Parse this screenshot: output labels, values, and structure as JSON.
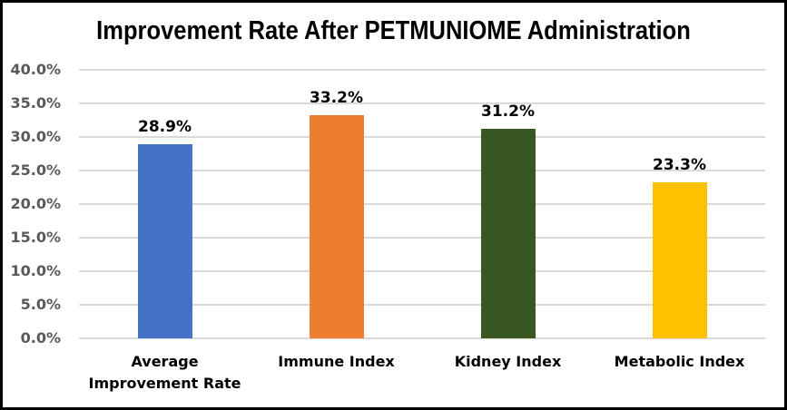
{
  "colors": {
    "background": "#ffffff",
    "border": "#000000",
    "gridline": "#d9d9d9",
    "axis_label_text": "#595959",
    "data_label_text": "#000000"
  },
  "chart_data": {
    "type": "bar",
    "title": "Improvement Rate After PETMUNIOME Administration",
    "categories": [
      "Average Improvement Rate",
      "Immune Index",
      "Kidney Index",
      "Metabolic Index"
    ],
    "category_lines": [
      [
        "Average",
        "Improvement Rate"
      ],
      [
        "Immune Index"
      ],
      [
        "Kidney Index"
      ],
      [
        "Metabolic Index"
      ]
    ],
    "values": [
      28.9,
      33.2,
      31.2,
      23.3
    ],
    "value_labels": [
      "28.9%",
      "33.2%",
      "31.2%",
      "23.3%"
    ],
    "bar_colors": [
      "#4472C4",
      "#ED7D31",
      "#385723",
      "#FFC000"
    ],
    "xlabel": "",
    "ylabel": "",
    "ylim": [
      0,
      40
    ],
    "ytick_values": [
      0,
      5,
      10,
      15,
      20,
      25,
      30,
      35,
      40
    ],
    "ytick_labels": [
      "0.0%",
      "5.0%",
      "10.0%",
      "15.0%",
      "20.0%",
      "25.0%",
      "30.0%",
      "35.0%",
      "40.0%"
    ],
    "grid": "horizontal",
    "legend": "none"
  }
}
